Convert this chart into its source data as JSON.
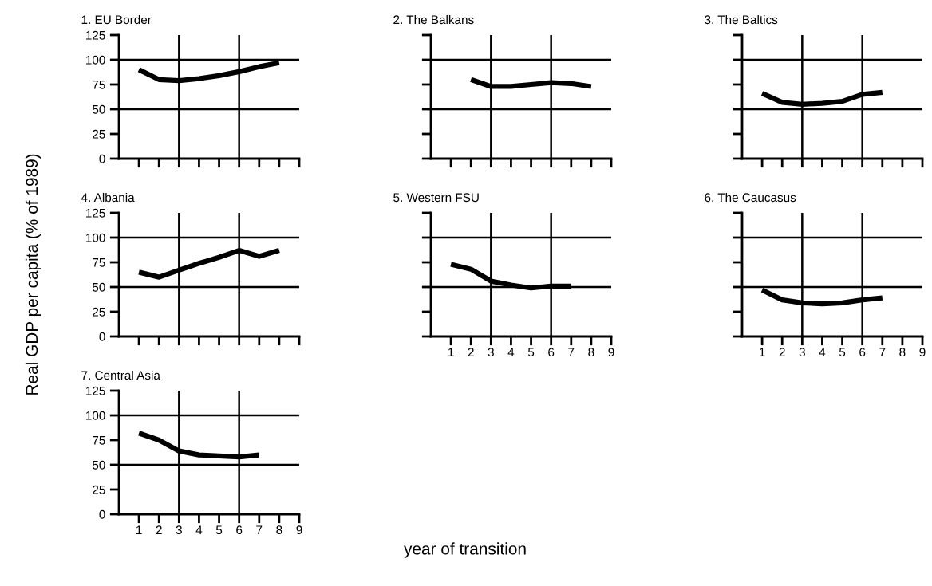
{
  "chart_data": [
    {
      "type": "line",
      "title": "1. EU Border",
      "x": [
        1,
        2,
        3,
        4,
        5,
        6,
        7,
        8
      ],
      "series": [
        {
          "color": "#000000",
          "values": [
            90,
            80,
            79,
            81,
            84,
            88,
            93,
            97
          ]
        }
      ],
      "xlim": [
        0,
        9
      ],
      "xticks": [
        1,
        2,
        3,
        4,
        5,
        6,
        7,
        8,
        9
      ],
      "ylim": [
        0,
        125
      ],
      "yticks": [
        0,
        25,
        50,
        75,
        100,
        125
      ],
      "tick_labels": "y",
      "grid": false,
      "legend": false,
      "marker": "none",
      "line_style": "solid",
      "ref_lines": [
        {
          "axis": "x",
          "value": 3,
          "color": "#000000"
        },
        {
          "axis": "x",
          "value": 6,
          "color": "#000000"
        },
        {
          "axis": "y",
          "value": 50,
          "color": "#000000"
        },
        {
          "axis": "y",
          "value": 100,
          "color": "#000000"
        }
      ]
    },
    {
      "type": "line",
      "title": "2. The Balkans",
      "x": [
        2,
        3,
        4,
        5,
        6,
        7,
        8
      ],
      "series": [
        {
          "color": "#000000",
          "values": [
            80,
            73,
            73,
            75,
            77,
            76,
            73
          ]
        }
      ],
      "xlim": [
        0,
        9
      ],
      "xticks": [
        1,
        2,
        3,
        4,
        5,
        6,
        7,
        8,
        9
      ],
      "ylim": [
        0,
        125
      ],
      "yticks": [
        0,
        25,
        50,
        75,
        100,
        125
      ],
      "tick_labels": false,
      "grid": false,
      "legend": false,
      "marker": "none",
      "line_style": "solid",
      "ref_lines": [
        {
          "axis": "x",
          "value": 3,
          "color": "#000000"
        },
        {
          "axis": "x",
          "value": 6,
          "color": "#000000"
        },
        {
          "axis": "y",
          "value": 50,
          "color": "#000000"
        },
        {
          "axis": "y",
          "value": 100,
          "color": "#000000"
        }
      ]
    },
    {
      "type": "line",
      "title": "3. The Baltics",
      "x": [
        1,
        2,
        3,
        4,
        5,
        6,
        7
      ],
      "series": [
        {
          "color": "#000000",
          "values": [
            66,
            57,
            55,
            56,
            58,
            65,
            67
          ]
        }
      ],
      "xlim": [
        0,
        9
      ],
      "xticks": [
        1,
        2,
        3,
        4,
        5,
        6,
        7,
        8,
        9
      ],
      "ylim": [
        0,
        125
      ],
      "yticks": [
        0,
        25,
        50,
        75,
        100,
        125
      ],
      "tick_labels": false,
      "grid": false,
      "legend": false,
      "marker": "none",
      "line_style": "solid",
      "ref_lines": [
        {
          "axis": "x",
          "value": 3,
          "color": "#000000"
        },
        {
          "axis": "x",
          "value": 6,
          "color": "#000000"
        },
        {
          "axis": "y",
          "value": 50,
          "color": "#000000"
        },
        {
          "axis": "y",
          "value": 100,
          "color": "#000000"
        }
      ]
    },
    {
      "type": "line",
      "title": "4. Albania",
      "ylabel": "Real GDP per capita (% of 1989)",
      "x": [
        1,
        2,
        3,
        4,
        5,
        6,
        7,
        8
      ],
      "series": [
        {
          "color": "#000000",
          "values": [
            65,
            60,
            67,
            74,
            80,
            87,
            81,
            87
          ]
        }
      ],
      "xlim": [
        0,
        9
      ],
      "xticks": [
        1,
        2,
        3,
        4,
        5,
        6,
        7,
        8,
        9
      ],
      "ylim": [
        0,
        125
      ],
      "yticks": [
        0,
        25,
        50,
        75,
        100,
        125
      ],
      "tick_labels": "y",
      "grid": false,
      "legend": false,
      "marker": "none",
      "line_style": "solid",
      "ref_lines": [
        {
          "axis": "x",
          "value": 3,
          "color": "#000000"
        },
        {
          "axis": "x",
          "value": 6,
          "color": "#000000"
        },
        {
          "axis": "y",
          "value": 50,
          "color": "#000000"
        },
        {
          "axis": "y",
          "value": 100,
          "color": "#000000"
        }
      ]
    },
    {
      "type": "line",
      "title": "5. Western FSU",
      "xlabel": "year of transition",
      "x": [
        1,
        2,
        3,
        4,
        5,
        6,
        7
      ],
      "series": [
        {
          "color": "#000000",
          "values": [
            73,
            68,
            56,
            52,
            49,
            51,
            51
          ]
        }
      ],
      "xlim": [
        0,
        9
      ],
      "xticks": [
        1,
        2,
        3,
        4,
        5,
        6,
        7,
        8,
        9
      ],
      "ylim": [
        0,
        125
      ],
      "yticks": [
        0,
        25,
        50,
        75,
        100,
        125
      ],
      "tick_labels": "x",
      "grid": false,
      "legend": false,
      "marker": "none",
      "line_style": "solid",
      "ref_lines": [
        {
          "axis": "x",
          "value": 3,
          "color": "#000000"
        },
        {
          "axis": "x",
          "value": 6,
          "color": "#000000"
        },
        {
          "axis": "y",
          "value": 50,
          "color": "#000000"
        },
        {
          "axis": "y",
          "value": 100,
          "color": "#000000"
        }
      ]
    },
    {
      "type": "line",
      "title": "6. The Caucasus",
      "x": [
        1,
        2,
        3,
        4,
        5,
        6,
        7
      ],
      "series": [
        {
          "color": "#000000",
          "values": [
            47,
            37,
            34,
            33,
            34,
            37,
            39
          ]
        }
      ],
      "xlim": [
        0,
        9
      ],
      "xticks": [
        1,
        2,
        3,
        4,
        5,
        6,
        7,
        8,
        9
      ],
      "ylim": [
        0,
        125
      ],
      "yticks": [
        0,
        25,
        50,
        75,
        100,
        125
      ],
      "tick_labels": "x",
      "grid": false,
      "legend": false,
      "marker": "none",
      "line_style": "solid",
      "ref_lines": [
        {
          "axis": "x",
          "value": 3,
          "color": "#000000"
        },
        {
          "axis": "x",
          "value": 6,
          "color": "#000000"
        },
        {
          "axis": "y",
          "value": 50,
          "color": "#000000"
        },
        {
          "axis": "y",
          "value": 100,
          "color": "#000000"
        }
      ]
    },
    {
      "type": "line",
      "title": "7. Central Asia",
      "x": [
        1,
        2,
        3,
        4,
        5,
        6,
        7
      ],
      "series": [
        {
          "color": "#000000",
          "values": [
            82,
            75,
            64,
            60,
            59,
            58,
            60
          ]
        }
      ],
      "xlim": [
        0,
        9
      ],
      "xticks": [
        1,
        2,
        3,
        4,
        5,
        6,
        7,
        8,
        9
      ],
      "ylim": [
        0,
        125
      ],
      "yticks": [
        0,
        25,
        50,
        75,
        100,
        125
      ],
      "grid": false,
      "legend": false,
      "marker": "none",
      "line_style": "solid",
      "ref_lines": [
        {
          "axis": "x",
          "value": 3,
          "color": "#000000"
        },
        {
          "axis": "x",
          "value": 6,
          "color": "#000000"
        },
        {
          "axis": "y",
          "value": 50,
          "color": "#000000"
        },
        {
          "axis": "y",
          "value": 100,
          "color": "#000000"
        }
      ]
    }
  ]
}
